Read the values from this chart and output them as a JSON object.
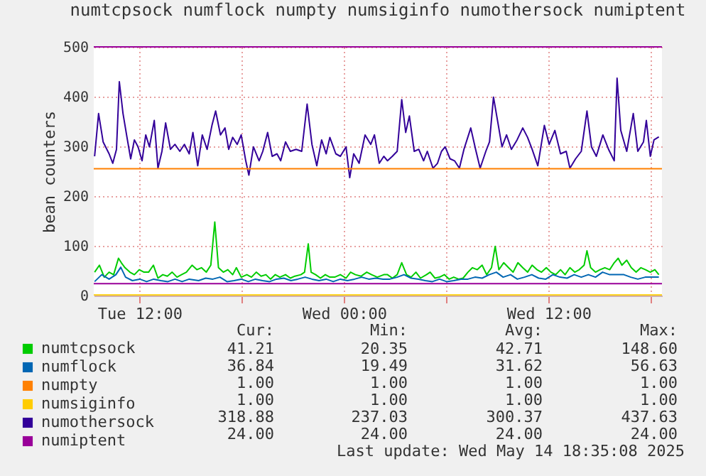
{
  "chart_data": {
    "type": "line",
    "title": "numtcpsock numflock numpty numsiginfo numothersock numiptent",
    "ylabel": "bean counters",
    "xlim": [
      "2025-05-13T09:19",
      "2025-05-14T18:39"
    ],
    "xticks": [
      {
        "value": "2025-05-13T12:00",
        "label": "Tue 12:00"
      },
      {
        "value": "2025-05-13T18:00",
        "label": null
      },
      {
        "value": "2025-05-14T00:00",
        "label": "Wed 00:00"
      },
      {
        "value": "2025-05-14T06:00",
        "label": null
      },
      {
        "value": "2025-05-14T12:00",
        "label": "Wed 12:00"
      },
      {
        "value": "2025-05-14T18:00",
        "label": null
      }
    ],
    "ylim": [
      0,
      500
    ],
    "yticks": [
      0,
      100,
      200,
      300,
      400,
      500
    ],
    "grid": true,
    "legend": "bottom",
    "ref_lines": [
      {
        "axis": "y",
        "value": 500,
        "color": "#990099"
      },
      {
        "axis": "y",
        "value": 255,
        "color": "#ff8000"
      }
    ],
    "series": [
      {
        "name": "numtcpsock",
        "color": "#00cc00",
        "x": [
          "2025-05-13T09:22",
          "2025-05-13T09:39",
          "2025-05-13T09:56",
          "2025-05-13T10:13",
          "2025-05-13T10:29",
          "2025-05-13T10:46",
          "2025-05-13T10:56",
          "2025-05-13T11:09",
          "2025-05-13T11:26",
          "2025-05-13T11:42",
          "2025-05-13T11:59",
          "2025-05-13T12:16",
          "2025-05-13T12:32",
          "2025-05-13T12:49",
          "2025-05-13T13:05",
          "2025-05-13T13:22",
          "2025-05-13T13:38",
          "2025-05-13T13:55",
          "2025-05-13T14:12",
          "2025-05-13T14:28",
          "2025-05-13T14:45",
          "2025-05-13T15:05",
          "2025-05-13T15:22",
          "2025-05-13T15:38",
          "2025-05-13T15:55",
          "2025-05-13T16:11",
          "2025-05-13T16:25",
          "2025-05-13T16:38",
          "2025-05-13T16:55",
          "2025-05-13T17:11",
          "2025-05-13T17:28",
          "2025-05-13T17:41",
          "2025-05-13T17:58",
          "2025-05-13T18:18",
          "2025-05-13T18:34",
          "2025-05-13T18:51",
          "2025-05-13T19:08",
          "2025-05-13T19:25",
          "2025-05-13T19:41",
          "2025-05-13T19:58",
          "2025-05-13T20:14",
          "2025-05-13T20:34",
          "2025-05-13T20:51",
          "2025-05-13T21:07",
          "2025-05-13T21:28",
          "2025-05-13T21:41",
          "2025-05-13T21:54",
          "2025-05-13T22:04",
          "2025-05-13T22:20",
          "2025-05-13T22:37",
          "2025-05-13T22:54",
          "2025-05-13T23:10",
          "2025-05-13T23:27",
          "2025-05-13T23:47",
          "2025-05-14T00:07",
          "2025-05-14T00:23",
          "2025-05-14T00:40",
          "2025-05-14T01:00",
          "2025-05-14T01:20",
          "2025-05-14T01:37",
          "2025-05-14T01:57",
          "2025-05-14T02:20",
          "2025-05-14T02:33",
          "2025-05-14T02:50",
          "2025-05-14T03:07",
          "2025-05-14T03:23",
          "2025-05-14T03:40",
          "2025-05-14T03:56",
          "2025-05-14T04:13",
          "2025-05-14T04:29",
          "2025-05-14T04:50",
          "2025-05-14T05:03",
          "2025-05-14T05:20",
          "2025-05-14T05:36",
          "2025-05-14T05:53",
          "2025-05-14T06:10",
          "2025-05-14T06:26",
          "2025-05-14T06:43",
          "2025-05-14T06:59",
          "2025-05-14T07:16",
          "2025-05-14T07:32",
          "2025-05-14T07:49",
          "2025-05-14T08:06",
          "2025-05-14T08:22",
          "2025-05-14T08:39",
          "2025-05-14T08:52",
          "2025-05-14T09:05",
          "2025-05-14T09:22",
          "2025-05-14T09:39",
          "2025-05-14T09:55",
          "2025-05-14T10:12",
          "2025-05-14T10:29",
          "2025-05-14T10:46",
          "2025-05-14T11:02",
          "2025-05-14T11:19",
          "2025-05-14T11:35",
          "2025-05-14T11:52",
          "2025-05-14T12:08",
          "2025-05-14T12:25",
          "2025-05-14T12:42",
          "2025-05-14T12:58",
          "2025-05-14T13:15",
          "2025-05-14T13:32",
          "2025-05-14T13:48",
          "2025-05-14T14:05",
          "2025-05-14T14:15",
          "2025-05-14T14:28",
          "2025-05-14T14:45",
          "2025-05-14T15:01",
          "2025-05-14T15:18",
          "2025-05-14T15:35",
          "2025-05-14T15:51",
          "2025-05-14T16:05",
          "2025-05-14T16:18",
          "2025-05-14T16:35",
          "2025-05-14T16:51",
          "2025-05-14T17:08",
          "2025-05-14T17:25",
          "2025-05-14T17:41",
          "2025-05-14T17:58",
          "2025-05-14T18:14",
          "2025-05-14T18:28"
        ],
        "values": [
          47,
          61,
          37,
          47,
          42,
          75,
          66,
          56,
          47,
          42,
          52,
          47,
          47,
          61,
          35,
          42,
          39,
          47,
          37,
          42,
          47,
          61,
          52,
          56,
          47,
          61,
          148,
          56,
          47,
          52,
          42,
          56,
          37,
          42,
          37,
          47,
          39,
          42,
          33,
          42,
          37,
          42,
          35,
          39,
          42,
          47,
          104,
          47,
          42,
          35,
          42,
          37,
          37,
          42,
          35,
          47,
          42,
          39,
          47,
          42,
          37,
          42,
          42,
          35,
          42,
          66,
          42,
          37,
          47,
          35,
          42,
          47,
          35,
          37,
          42,
          33,
          37,
          33,
          35,
          47,
          56,
          52,
          61,
          42,
          56,
          99,
          52,
          66,
          56,
          47,
          66,
          56,
          47,
          61,
          52,
          47,
          56,
          47,
          42,
          52,
          42,
          56,
          47,
          52,
          61,
          90,
          56,
          47,
          52,
          56,
          52,
          66,
          75,
          61,
          71,
          56,
          47,
          56,
          52,
          47,
          52,
          42
        ]
      },
      {
        "name": "numflock",
        "color": "#0066b3",
        "x": [
          "2025-05-13T09:22",
          "2025-05-13T09:47",
          "2025-05-13T10:13",
          "2025-05-13T10:37",
          "2025-05-13T10:54",
          "2025-05-13T11:11",
          "2025-05-13T11:35",
          "2025-05-13T12:01",
          "2025-05-13T12:25",
          "2025-05-13T12:50",
          "2025-05-13T13:15",
          "2025-05-13T13:40",
          "2025-05-13T14:05",
          "2025-05-13T14:30",
          "2025-05-13T14:55",
          "2025-05-13T15:28",
          "2025-05-13T15:53",
          "2025-05-13T16:18",
          "2025-05-13T16:43",
          "2025-05-13T17:08",
          "2025-05-13T17:33",
          "2025-05-13T17:58",
          "2025-05-13T18:23",
          "2025-05-13T18:48",
          "2025-05-13T19:13",
          "2025-05-13T19:38",
          "2025-05-13T20:02",
          "2025-05-13T20:28",
          "2025-05-13T20:53",
          "2025-05-13T21:17",
          "2025-05-13T21:43",
          "2025-05-13T22:07",
          "2025-05-13T22:32",
          "2025-05-13T22:57",
          "2025-05-13T23:22",
          "2025-05-13T23:47",
          "2025-05-14T00:12",
          "2025-05-14T00:37",
          "2025-05-14T01:02",
          "2025-05-14T01:27",
          "2025-05-14T01:52",
          "2025-05-14T02:17",
          "2025-05-14T02:41",
          "2025-05-14T03:07",
          "2025-05-14T03:31",
          "2025-05-14T03:56",
          "2025-05-14T04:22",
          "2025-05-14T04:46",
          "2025-05-14T05:11",
          "2025-05-14T05:36",
          "2025-05-14T06:01",
          "2025-05-14T06:26",
          "2025-05-14T06:51",
          "2025-05-14T07:16",
          "2025-05-14T07:41",
          "2025-05-14T08:06",
          "2025-05-14T08:31",
          "2025-05-14T08:56",
          "2025-05-14T09:20",
          "2025-05-14T09:46",
          "2025-05-14T10:10",
          "2025-05-14T10:35",
          "2025-05-14T11:01",
          "2025-05-14T11:25",
          "2025-05-14T11:50",
          "2025-05-14T12:15",
          "2025-05-14T12:40",
          "2025-05-14T13:05",
          "2025-05-14T13:30",
          "2025-05-14T13:55",
          "2025-05-14T14:20",
          "2025-05-14T14:45",
          "2025-05-14T15:10",
          "2025-05-14T15:35",
          "2025-05-14T15:59",
          "2025-05-14T16:25",
          "2025-05-14T16:49",
          "2025-05-14T17:14",
          "2025-05-14T17:40",
          "2025-05-14T18:04",
          "2025-05-14T18:28"
        ],
        "values": [
          28,
          42,
          33,
          42,
          57,
          37,
          30,
          33,
          28,
          33,
          30,
          28,
          33,
          28,
          33,
          30,
          35,
          33,
          37,
          28,
          30,
          33,
          28,
          33,
          30,
          28,
          33,
          35,
          30,
          33,
          37,
          33,
          30,
          33,
          28,
          33,
          30,
          33,
          37,
          33,
          35,
          33,
          33,
          37,
          42,
          35,
          33,
          30,
          28,
          33,
          28,
          30,
          33,
          33,
          37,
          35,
          42,
          47,
          37,
          42,
          33,
          37,
          42,
          35,
          33,
          42,
          37,
          35,
          42,
          37,
          42,
          37,
          47,
          42,
          42,
          42,
          37,
          33,
          37,
          37,
          37
        ]
      },
      {
        "name": "numpty",
        "color": "#ff8000"
      },
      {
        "name": "numsiginfo",
        "color": "#ffcc00",
        "x": [
          "2025-05-13T09:19",
          "2025-05-14T18:39"
        ],
        "values": [
          1,
          1
        ]
      },
      {
        "name": "numothersock",
        "color": "#330099",
        "x": [
          "2025-05-13T09:22",
          "2025-05-13T09:36",
          "2025-05-13T09:52",
          "2025-05-13T10:13",
          "2025-05-13T10:26",
          "2025-05-13T10:39",
          "2025-05-13T10:49",
          "2025-05-13T11:02",
          "2025-05-13T11:16",
          "2025-05-13T11:29",
          "2025-05-13T11:42",
          "2025-05-13T11:55",
          "2025-05-13T12:09",
          "2025-05-13T12:22",
          "2025-05-13T12:35",
          "2025-05-13T12:52",
          "2025-05-13T13:05",
          "2025-05-13T13:19",
          "2025-05-13T13:32",
          "2025-05-13T13:49",
          "2025-05-13T14:05",
          "2025-05-13T14:22",
          "2025-05-13T14:38",
          "2025-05-13T14:55",
          "2025-05-13T15:08",
          "2025-05-13T15:25",
          "2025-05-13T15:41",
          "2025-05-13T15:58",
          "2025-05-13T16:15",
          "2025-05-13T16:28",
          "2025-05-13T16:45",
          "2025-05-13T17:01",
          "2025-05-13T17:14",
          "2025-05-13T17:28",
          "2025-05-13T17:44",
          "2025-05-13T17:58",
          "2025-05-13T18:14",
          "2025-05-13T18:25",
          "2025-05-13T18:41",
          "2025-05-13T19:01",
          "2025-05-13T19:14",
          "2025-05-13T19:31",
          "2025-05-13T19:47",
          "2025-05-13T20:04",
          "2025-05-13T20:17",
          "2025-05-13T20:34",
          "2025-05-13T20:51",
          "2025-05-13T21:11",
          "2025-05-13T21:31",
          "2025-05-13T21:50",
          "2025-05-13T22:07",
          "2025-05-13T22:24",
          "2025-05-13T22:41",
          "2025-05-13T22:57",
          "2025-05-13T23:10",
          "2025-05-13T23:31",
          "2025-05-13T23:47",
          "2025-05-14T00:07",
          "2025-05-14T00:20",
          "2025-05-14T00:34",
          "2025-05-14T00:53",
          "2025-05-14T01:14",
          "2025-05-14T01:34",
          "2025-05-14T01:47",
          "2025-05-14T02:04",
          "2025-05-14T02:20",
          "2025-05-14T02:33",
          "2025-05-14T02:50",
          "2025-05-14T03:07",
          "2025-05-14T03:23",
          "2025-05-14T03:37",
          "2025-05-14T03:50",
          "2025-05-14T04:07",
          "2025-05-14T04:23",
          "2025-05-14T04:40",
          "2025-05-14T04:53",
          "2025-05-14T05:13",
          "2025-05-14T05:29",
          "2025-05-14T05:43",
          "2025-05-14T05:56",
          "2025-05-14T06:13",
          "2025-05-14T06:29",
          "2025-05-14T06:46",
          "2025-05-14T07:02",
          "2025-05-14T07:26",
          "2025-05-14T07:43",
          "2025-05-14T07:59",
          "2025-05-14T08:19",
          "2025-05-14T08:32",
          "2025-05-14T08:46",
          "2025-05-14T08:59",
          "2025-05-14T09:16",
          "2025-05-14T09:32",
          "2025-05-14T09:49",
          "2025-05-14T10:09",
          "2025-05-14T10:29",
          "2025-05-14T10:46",
          "2025-05-14T11:02",
          "2025-05-14T11:22",
          "2025-05-14T11:45",
          "2025-05-14T12:02",
          "2025-05-14T12:22",
          "2025-05-14T12:42",
          "2025-05-14T13:02",
          "2025-05-14T13:15",
          "2025-05-14T13:35",
          "2025-05-14T13:55",
          "2025-05-14T14:15",
          "2025-05-14T14:31",
          "2025-05-14T14:48",
          "2025-05-14T15:11",
          "2025-05-14T15:31",
          "2025-05-14T15:51",
          "2025-05-14T16:01",
          "2025-05-14T16:14",
          "2025-05-14T16:35",
          "2025-05-14T16:58",
          "2025-05-14T17:14",
          "2025-05-14T17:34",
          "2025-05-14T17:44",
          "2025-05-14T17:58",
          "2025-05-14T18:11",
          "2025-05-14T18:28"
        ],
        "values": [
          280,
          366,
          309,
          285,
          266,
          294,
          430,
          366,
          318,
          275,
          313,
          299,
          271,
          323,
          299,
          352,
          256,
          290,
          347,
          294,
          304,
          290,
          304,
          285,
          328,
          261,
          323,
          294,
          342,
          371,
          323,
          337,
          294,
          318,
          304,
          323,
          271,
          242,
          299,
          271,
          290,
          328,
          280,
          285,
          271,
          309,
          290,
          294,
          290,
          385,
          304,
          261,
          313,
          285,
          318,
          285,
          280,
          299,
          237,
          285,
          266,
          323,
          304,
          323,
          266,
          280,
          271,
          280,
          290,
          394,
          328,
          361,
          290,
          294,
          271,
          290,
          256,
          266,
          290,
          299,
          275,
          271,
          256,
          294,
          337,
          294,
          256,
          290,
          309,
          399,
          356,
          299,
          323,
          294,
          313,
          337,
          318,
          294,
          261,
          342,
          304,
          332,
          285,
          290,
          256,
          275,
          290,
          371,
          299,
          280,
          323,
          294,
          271,
          437,
          332,
          290,
          366,
          290,
          309,
          352,
          280,
          313,
          319
        ]
      },
      {
        "name": "numiptent",
        "color": "#990099",
        "x": [
          "2025-05-13T09:19",
          "2025-05-14T18:39"
        ],
        "values": [
          24,
          24
        ]
      }
    ],
    "annotations": [
      "Cur:",
      "Min:",
      "Avg:",
      "Max:",
      "41.21",
      "20.35",
      "42.71",
      "148.60",
      "36.84",
      "19.49",
      "31.62",
      "56.63",
      "1.00",
      "1.00",
      "1.00",
      "1.00",
      "1.00",
      "1.00",
      "1.00",
      "1.00",
      "318.88",
      "237.03",
      "300.37",
      "437.63",
      "24.00",
      "24.00",
      "24.00",
      "24.00",
      "Last update: Wed May 14 18:35:08 2025"
    ]
  }
}
